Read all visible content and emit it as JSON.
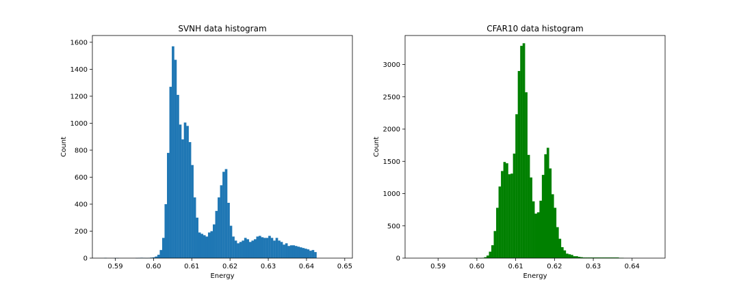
{
  "colors": {
    "svnh_bar": "#1f77b4",
    "cfar_bar": "#008000",
    "axis": "#000000",
    "background": "#ffffff"
  },
  "chart_data": [
    {
      "type": "bar",
      "title": "SVNH data histogram",
      "xlabel": "Energy",
      "ylabel": "Count",
      "xlim": [
        0.584,
        0.652
      ],
      "ylim": [
        0,
        1650
      ],
      "xticks": [
        {
          "value": 0.59,
          "label": "0.59"
        },
        {
          "value": 0.6,
          "label": "0.60"
        },
        {
          "value": 0.61,
          "label": "0.61"
        },
        {
          "value": 0.62,
          "label": "0.62"
        },
        {
          "value": 0.63,
          "label": "0.63"
        },
        {
          "value": 0.64,
          "label": "0.64"
        },
        {
          "value": 0.65,
          "label": "0.65"
        }
      ],
      "yticks": [
        {
          "value": 0,
          "label": "0"
        },
        {
          "value": 200,
          "label": "200"
        },
        {
          "value": 400,
          "label": "400"
        },
        {
          "value": 600,
          "label": "600"
        },
        {
          "value": 800,
          "label": "800"
        },
        {
          "value": 1000,
          "label": "1000"
        },
        {
          "value": 1200,
          "label": "1200"
        },
        {
          "value": 1400,
          "label": "1400"
        },
        {
          "value": 1600,
          "label": "1600"
        }
      ],
      "bin_start": 0.5871,
      "bin_width": 0.000631,
      "values": [
        2,
        0,
        0,
        0,
        1,
        1,
        0,
        0,
        0,
        0,
        0,
        0,
        0,
        1,
        2,
        3,
        2,
        1,
        2,
        4,
        6,
        12,
        25,
        60,
        150,
        400,
        780,
        1270,
        1570,
        1470,
        1210,
        990,
        880,
        1005,
        980,
        860,
        690,
        450,
        300,
        190,
        180,
        170,
        160,
        190,
        200,
        250,
        350,
        450,
        540,
        640,
        660,
        410,
        240,
        160,
        130,
        110,
        120,
        130,
        150,
        140,
        120,
        130,
        140,
        160,
        165,
        155,
        150,
        150,
        165,
        150,
        130,
        150,
        130,
        120,
        100,
        110,
        90,
        95,
        95,
        90,
        85,
        80,
        75,
        70,
        65,
        55,
        60,
        45
      ]
    },
    {
      "type": "bar",
      "title": "CFAR10 data histogram",
      "xlabel": "Energy",
      "ylabel": "Count",
      "xlim": [
        0.5815,
        0.6485
      ],
      "ylim": [
        0,
        3450
      ],
      "xticks": [
        {
          "value": 0.59,
          "label": "0.59"
        },
        {
          "value": 0.6,
          "label": "0.60"
        },
        {
          "value": 0.61,
          "label": "0.61"
        },
        {
          "value": 0.62,
          "label": "0.62"
        },
        {
          "value": 0.63,
          "label": "0.63"
        },
        {
          "value": 0.64,
          "label": "0.64"
        }
      ],
      "yticks": [
        {
          "value": 0,
          "label": "0"
        },
        {
          "value": 500,
          "label": "500"
        },
        {
          "value": 1000,
          "label": "1000"
        },
        {
          "value": 1500,
          "label": "1500"
        },
        {
          "value": 2000,
          "label": "2000"
        },
        {
          "value": 2500,
          "label": "2500"
        },
        {
          "value": 3000,
          "label": "3000"
        }
      ],
      "bin_start": 0.5845,
      "bin_width": 0.00062,
      "values": [
        0,
        0,
        0,
        0,
        0,
        0,
        0,
        0,
        0,
        0,
        0,
        0,
        0,
        0,
        0,
        0,
        0,
        0,
        0,
        0,
        0,
        0,
        0,
        0,
        1,
        0,
        2,
        5,
        15,
        40,
        100,
        200,
        420,
        780,
        1110,
        1350,
        1490,
        1470,
        1300,
        1310,
        1620,
        2230,
        2900,
        3290,
        3330,
        2570,
        1600,
        1250,
        880,
        690,
        710,
        890,
        1290,
        1610,
        1710,
        1390,
        990,
        780,
        480,
        300,
        170,
        120,
        70,
        60,
        50,
        30,
        30,
        20,
        15,
        10,
        10,
        10,
        10,
        10,
        10,
        10,
        10,
        10,
        10,
        10,
        10,
        10,
        10,
        10,
        5,
        5
      ]
    }
  ]
}
